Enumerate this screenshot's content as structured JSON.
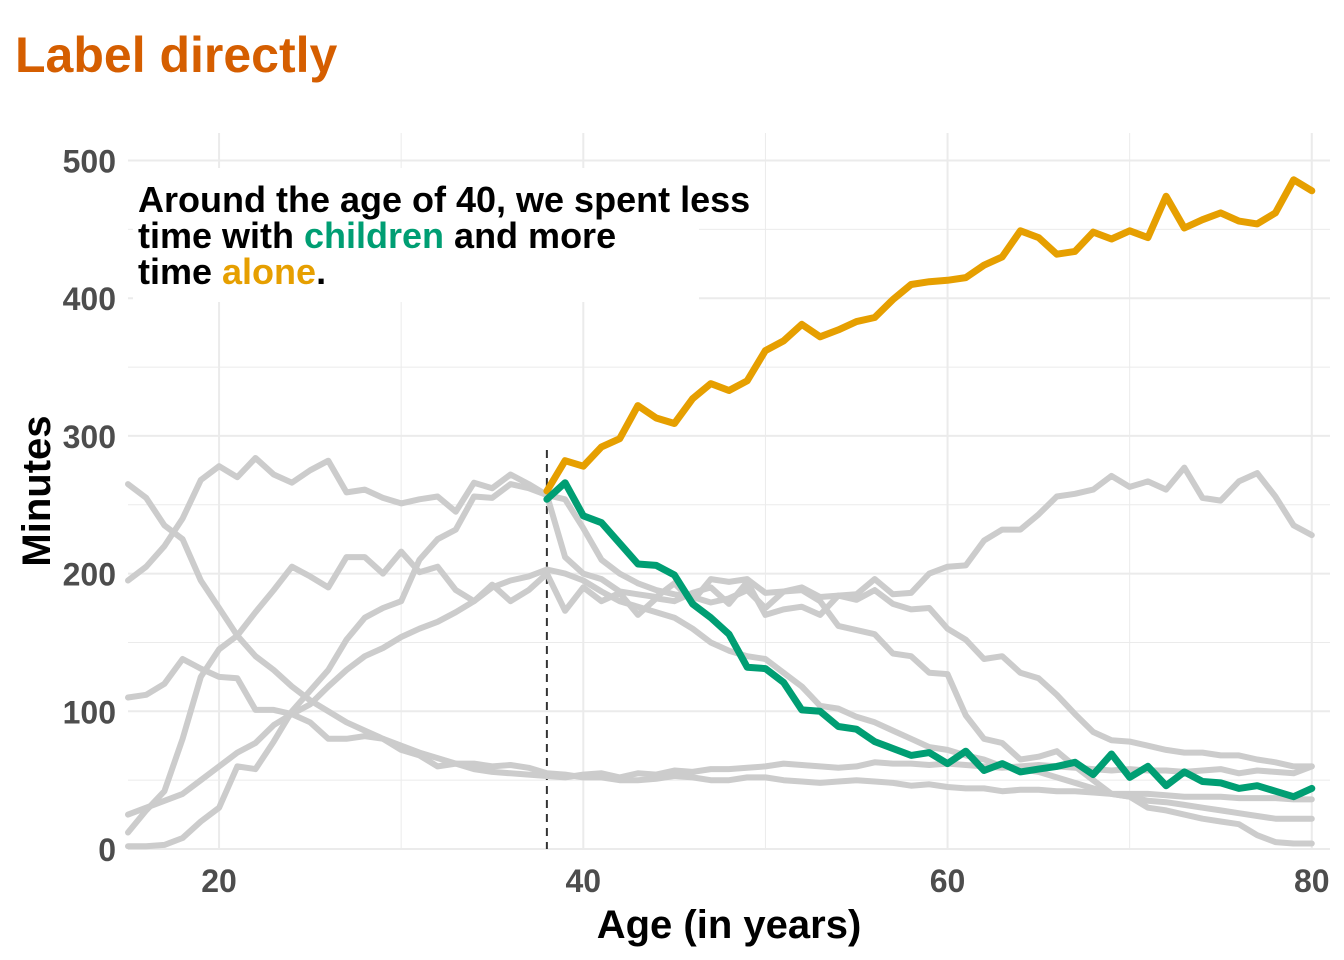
{
  "chart_data": {
    "type": "line",
    "title": "Label directly",
    "xlabel": "Age (in years)",
    "ylabel": "Minutes",
    "xlim": [
      15,
      81
    ],
    "ylim": [
      0,
      520
    ],
    "xticks": [
      20,
      40,
      60,
      80
    ],
    "yticks": [
      0,
      100,
      200,
      300,
      400,
      500
    ],
    "grid": true,
    "reference_line": {
      "x": 38,
      "style": "dashed"
    },
    "annotation": {
      "parts": [
        {
          "text": "Around the age of 40, we spent less",
          "color": "#000000",
          "line": 0
        },
        {
          "text": "time with ",
          "color": "#000000",
          "line": 1
        },
        {
          "text": "children",
          "color": "#009e73",
          "line": 1
        },
        {
          "text": " and more",
          "color": "#000000",
          "line": 1
        },
        {
          "text": "time ",
          "color": "#000000",
          "line": 2
        },
        {
          "text": "alone",
          "color": "#e69f00",
          "line": 2
        },
        {
          "text": ".",
          "color": "#000000",
          "line": 2
        }
      ]
    },
    "colors": {
      "title": "#d55e00",
      "alone": "#e69f00",
      "children": "#009e73",
      "background": "#cccccc",
      "grid": "#ebebeb",
      "ticks": "#4d4d4d"
    },
    "series": [
      {
        "highlight": "alone",
        "x": [
          38,
          39,
          40,
          41,
          42,
          43,
          44,
          45,
          46,
          47,
          48,
          49,
          50,
          51,
          52,
          53,
          54,
          55,
          56,
          57,
          58,
          59,
          60,
          61,
          62,
          63,
          64,
          65,
          66,
          67,
          68,
          69,
          70,
          71,
          72,
          73,
          74,
          75,
          76,
          77,
          78,
          79,
          80
        ],
        "values": [
          260,
          282,
          278,
          292,
          298,
          322,
          313,
          309,
          327,
          338,
          333,
          340,
          362,
          369,
          381,
          372,
          377,
          383,
          386,
          399,
          410,
          412,
          413,
          415,
          424,
          430,
          449,
          444,
          432,
          434,
          448,
          443,
          449,
          444,
          474,
          451,
          457,
          462,
          456,
          454,
          462,
          486,
          478
        ]
      },
      {
        "highlight": "children",
        "x": [
          38,
          39,
          40,
          41,
          42,
          43,
          44,
          45,
          46,
          47,
          48,
          49,
          50,
          51,
          52,
          53,
          54,
          55,
          56,
          57,
          58,
          59,
          60,
          61,
          62,
          63,
          64,
          65,
          66,
          67,
          68,
          69,
          70,
          71,
          72,
          73,
          74,
          75,
          76,
          77,
          78,
          79,
          80
        ],
        "values": [
          254,
          266,
          242,
          237,
          222,
          207,
          206,
          199,
          178,
          168,
          156,
          132,
          131,
          121,
          101,
          100,
          89,
          87,
          78,
          73,
          68,
          70,
          62,
          71,
          57,
          62,
          56,
          58,
          60,
          63,
          54,
          69,
          52,
          60,
          46,
          56,
          49,
          48,
          44,
          46,
          42,
          38,
          44
        ]
      },
      {
        "x": [
          15,
          16,
          17,
          18,
          19,
          20,
          21,
          22,
          23,
          24,
          25,
          26,
          27,
          28,
          29,
          30,
          31,
          32,
          33,
          34,
          35,
          36,
          37,
          38,
          39,
          40,
          41,
          42,
          43,
          44,
          45,
          46,
          47,
          48,
          49,
          50,
          51,
          52,
          53,
          54,
          55,
          56,
          57,
          58,
          59,
          60,
          61,
          62,
          63,
          64,
          65,
          66,
          67,
          68,
          69,
          70,
          71,
          72,
          73,
          74,
          75,
          76,
          77,
          78,
          79,
          80
        ],
        "values": [
          265,
          255,
          235,
          225,
          195,
          175,
          155,
          140,
          130,
          118,
          108,
          100,
          92,
          86,
          80,
          75,
          70,
          66,
          62,
          58,
          56,
          55,
          54,
          53,
          52,
          54,
          55,
          52,
          55,
          54,
          57,
          56,
          58,
          58,
          59,
          60,
          62,
          61,
          60,
          59,
          60,
          63,
          62,
          62,
          61,
          62,
          61,
          60,
          59,
          60,
          61,
          60,
          59,
          58,
          57,
          58,
          57,
          57,
          56,
          57,
          58,
          55,
          57,
          56,
          55,
          60
        ]
      },
      {
        "x": [
          15,
          16,
          17,
          18,
          19,
          20,
          21,
          22,
          23,
          24,
          25,
          26,
          27,
          28,
          29,
          30,
          31,
          32,
          33,
          34,
          35,
          36,
          37,
          38,
          39,
          40,
          41,
          42,
          43,
          44,
          45,
          46,
          47,
          48,
          49,
          50,
          51,
          52,
          53,
          54,
          55,
          56,
          57,
          58,
          59,
          60,
          61,
          62,
          63,
          64,
          65,
          66,
          67,
          68,
          69,
          70,
          71,
          72,
          73,
          74,
          75,
          76,
          77,
          78,
          79,
          80
        ],
        "values": [
          195,
          205,
          220,
          240,
          268,
          278,
          270,
          284,
          272,
          266,
          275,
          282,
          259,
          261,
          255,
          251,
          254,
          256,
          245,
          266,
          262,
          272,
          265,
          257,
          254,
          233,
          210,
          200,
          193,
          188,
          185,
          183,
          179,
          182,
          188,
          175,
          187,
          190,
          183,
          184,
          185,
          196,
          185,
          186,
          200,
          205,
          206,
          224,
          232,
          232,
          243,
          256,
          258,
          261,
          271,
          263,
          267,
          261,
          277,
          255,
          253,
          267,
          273,
          256,
          235,
          228
        ]
      },
      {
        "x": [
          15,
          16,
          17,
          18,
          19,
          20,
          21,
          22,
          23,
          24,
          25,
          26,
          27,
          28,
          29,
          30,
          31,
          32,
          33,
          34,
          35,
          36,
          37,
          38,
          39,
          40,
          41,
          42,
          43,
          44,
          45,
          46,
          47,
          48,
          49,
          50,
          51,
          52,
          53,
          54,
          55,
          56,
          57,
          58,
          59,
          60,
          61,
          62,
          63,
          64,
          65,
          66,
          67,
          68,
          69,
          70,
          71,
          72,
          73,
          74,
          75,
          76,
          77,
          78,
          79,
          80
        ],
        "values": [
          110,
          112,
          120,
          138,
          131,
          125,
          124,
          101,
          101,
          98,
          92,
          80,
          80,
          82,
          80,
          72,
          68,
          60,
          62,
          62,
          60,
          61,
          59,
          55,
          54,
          52,
          52,
          50,
          50,
          51,
          53,
          52,
          50,
          50,
          52,
          52,
          50,
          49,
          48,
          49,
          50,
          49,
          48,
          46,
          47,
          45,
          44,
          44,
          42,
          43,
          43,
          42,
          42,
          41,
          40,
          40,
          40,
          39,
          38,
          38,
          38,
          37,
          37,
          37,
          36,
          36
        ]
      },
      {
        "x": [
          15,
          16,
          17,
          18,
          19,
          20,
          21,
          22,
          23,
          24,
          25,
          26,
          27,
          28,
          29,
          30,
          31,
          32,
          33,
          34,
          35,
          36,
          37,
          38,
          39,
          40,
          41,
          42,
          43,
          44,
          45,
          46,
          47,
          48,
          49,
          50,
          51,
          52,
          53,
          54,
          55,
          56,
          57,
          58,
          59,
          60,
          61,
          62,
          63,
          64,
          65,
          66,
          67,
          68,
          69,
          70,
          71,
          72,
          73,
          74,
          75,
          76,
          77,
          78,
          79,
          80
        ],
        "values": [
          12,
          28,
          42,
          80,
          125,
          145,
          155,
          172,
          188,
          205,
          198,
          190,
          212,
          212,
          200,
          216,
          201,
          205,
          188,
          180,
          192,
          180,
          188,
          200,
          173,
          190,
          180,
          186,
          170,
          182,
          180,
          186,
          190,
          178,
          194,
          170,
          174,
          176,
          170,
          184,
          181,
          188,
          178,
          174,
          175,
          160,
          152,
          138,
          140,
          128,
          124,
          112,
          98,
          85,
          79,
          78,
          75,
          72,
          70,
          70,
          68,
          68,
          65,
          63,
          60,
          60
        ]
      },
      {
        "x": [
          15,
          16,
          17,
          18,
          19,
          20,
          21,
          22,
          23,
          24,
          25,
          26,
          27,
          28,
          29,
          30,
          31,
          32,
          33,
          34,
          35,
          36,
          37,
          38,
          39,
          40,
          41,
          42,
          43,
          44,
          45,
          46,
          47,
          48,
          49,
          50,
          51,
          52,
          53,
          54,
          55,
          56,
          57,
          58,
          59,
          60,
          61,
          62,
          63,
          64,
          65,
          66,
          67,
          68,
          69,
          70,
          71,
          72,
          73,
          74,
          75,
          76,
          77,
          78,
          79,
          80
        ],
        "values": [
          2,
          2,
          3,
          8,
          20,
          30,
          60,
          58,
          78,
          100,
          115,
          130,
          152,
          168,
          175,
          180,
          210,
          225,
          232,
          256,
          255,
          265,
          262,
          257,
          212,
          200,
          196,
          187,
          185,
          183,
          193,
          180,
          196,
          194,
          196,
          186,
          187,
          188,
          180,
          162,
          159,
          156,
          142,
          140,
          128,
          127,
          97,
          80,
          77,
          65,
          67,
          71,
          60,
          50,
          40,
          38,
          30,
          28,
          25,
          22,
          20,
          18,
          10,
          5,
          4,
          4
        ]
      },
      {
        "x": [
          15,
          16,
          17,
          18,
          19,
          20,
          21,
          22,
          23,
          24,
          25,
          26,
          27,
          28,
          29,
          30,
          31,
          32,
          33,
          34,
          35,
          36,
          37,
          38,
          39,
          40,
          41,
          42,
          43,
          44,
          45,
          46,
          47,
          48,
          49,
          50,
          51,
          52,
          53,
          54,
          55,
          56,
          57,
          58,
          59,
          60,
          61,
          62,
          63,
          64,
          65,
          66,
          67,
          68,
          69,
          70,
          71,
          72,
          73,
          74,
          75,
          76,
          77,
          78,
          79,
          80
        ],
        "values": [
          25,
          30,
          35,
          40,
          50,
          60,
          70,
          77,
          90,
          98,
          105,
          118,
          130,
          140,
          146,
          154,
          160,
          165,
          172,
          180,
          190,
          195,
          198,
          203,
          200,
          195,
          187,
          180,
          176,
          172,
          168,
          160,
          150,
          144,
          140,
          138,
          128,
          118,
          104,
          102,
          96,
          92,
          86,
          80,
          74,
          72,
          68,
          65,
          60,
          58,
          56,
          52,
          48,
          44,
          40,
          38,
          35,
          34,
          32,
          30,
          28,
          26,
          24,
          22,
          22,
          22
        ]
      }
    ]
  }
}
